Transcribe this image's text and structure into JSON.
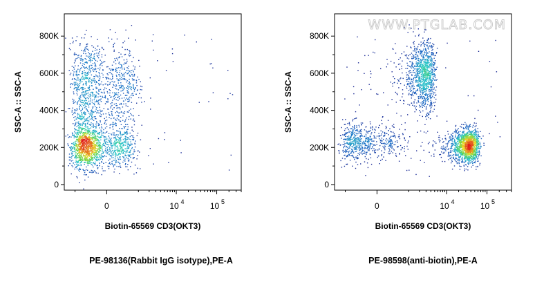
{
  "colors": {
    "density_low": "#1f2a8c",
    "density_mid": "#2bd0c8",
    "density_high": "#e0201a",
    "frame": "#000000"
  },
  "chart_data": [
    {
      "type": "scatter",
      "title": "",
      "xlabel": "Biotin-65569 CD3(OKT3)",
      "ylabel": "SSC-A :: SSC-A",
      "caption": "PE-98136(Rabbit IgG isotype),PE-A",
      "watermark": "",
      "y_ticks": [
        {
          "value": 0,
          "label": "0"
        },
        {
          "value": 200000,
          "label": "200K"
        },
        {
          "value": 400000,
          "label": "400K"
        },
        {
          "value": 600000,
          "label": "600K"
        },
        {
          "value": 800000,
          "label": "800K"
        }
      ],
      "x_ticks": [
        {
          "value": 0,
          "label": "0",
          "sup": ""
        },
        {
          "value": 10000,
          "label": "10",
          "sup": "4"
        },
        {
          "value": 100000,
          "label": "10",
          "sup": "5"
        }
      ],
      "ylim": [
        -30000,
        920000
      ],
      "x_scale": "biexponential",
      "populations": [
        {
          "x_center": -300,
          "x_spread": 450,
          "y_center": 200000,
          "y_spread": 55000,
          "count": 1500
        },
        {
          "x_center": -200,
          "x_spread": 500,
          "y_center": 560000,
          "y_spread": 110000,
          "count": 900
        },
        {
          "x_center": -300,
          "x_spread": 400,
          "y_center": 360000,
          "y_spread": 60000,
          "count": 300
        }
      ]
    },
    {
      "type": "scatter",
      "title": "",
      "xlabel": "Biotin-65569 CD3(OKT3)",
      "ylabel": "SSC-A :: SSC-A",
      "caption": "PE-98598(anti-biotin),PE-A",
      "watermark": "WWW.PTGLAB.COM",
      "y_ticks": [
        {
          "value": 0,
          "label": "0"
        },
        {
          "value": 200000,
          "label": "200K"
        },
        {
          "value": 400000,
          "label": "400K"
        },
        {
          "value": 600000,
          "label": "600K"
        },
        {
          "value": 800000,
          "label": "800K"
        }
      ],
      "x_ticks": [
        {
          "value": 0,
          "label": "0",
          "sup": ""
        },
        {
          "value": 10000,
          "label": "10",
          "sup": "4"
        },
        {
          "value": 100000,
          "label": "10",
          "sup": "5"
        }
      ],
      "ylim": [
        -30000,
        920000
      ],
      "x_scale": "biexponential",
      "populations": [
        {
          "x_center": -300,
          "x_spread": 450,
          "y_center": 230000,
          "y_spread": 50000,
          "count": 650
        },
        {
          "x_center": 2500,
          "x_spread": 1200,
          "y_center": 590000,
          "y_spread": 90000,
          "count": 1100
        },
        {
          "x_center": 32000,
          "x_spread": 14000,
          "y_center": 210000,
          "y_spread": 45000,
          "count": 1500
        }
      ]
    }
  ]
}
